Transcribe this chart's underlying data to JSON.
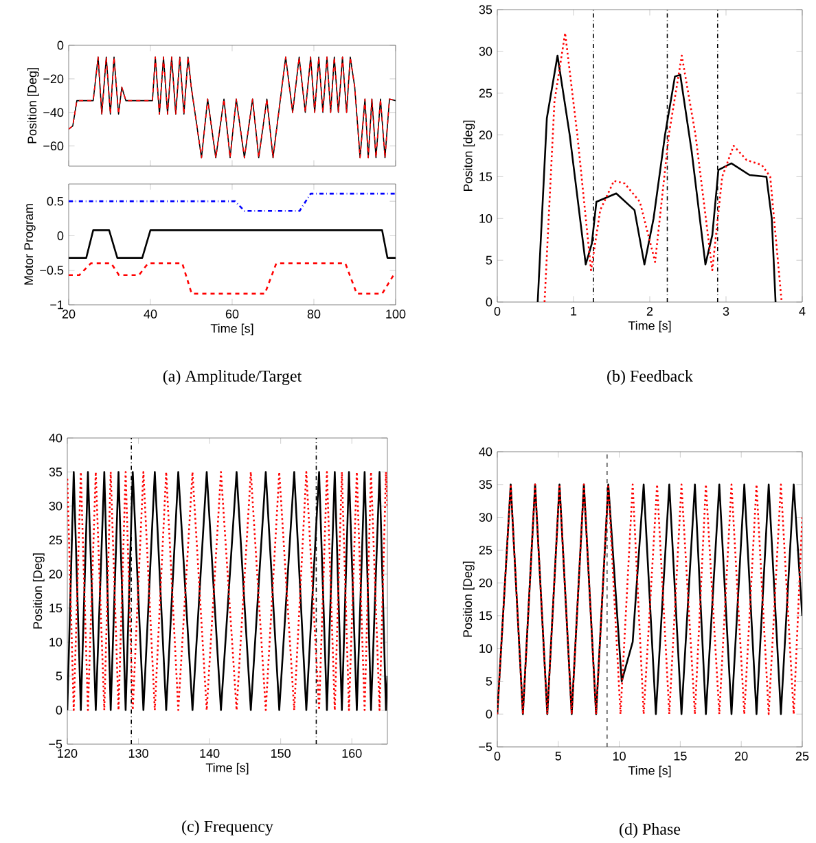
{
  "chart_data": [
    {
      "type": "line",
      "ylabel": "Position [Deg]",
      "xlim": [
        20,
        100
      ],
      "xticks": [
        20,
        40,
        60,
        80,
        100
      ],
      "ylim": [
        -72,
        0
      ],
      "yticks": [
        {
          "value": -60,
          "label": "−60"
        },
        {
          "value": -40,
          "label": "−40"
        },
        {
          "value": -20,
          "label": "−20"
        },
        0
      ],
      "tick_labels": "y",
      "x": [
        20,
        21,
        22,
        26,
        27.2,
        28.1,
        29.2,
        30.2,
        31.1,
        32.2,
        33,
        34,
        40.5,
        41.2,
        42.2,
        43.2,
        44.2,
        45.2,
        46.2,
        47.2,
        48.2,
        49.2,
        50,
        52.5,
        54,
        56,
        58,
        59.5,
        61,
        63,
        65,
        66.5,
        68.5,
        70,
        73.1,
        74.8,
        76.4,
        77.9,
        79.2,
        80.2,
        81.2,
        82.2,
        83.2,
        84.1,
        85,
        86,
        87,
        88,
        88.9,
        90,
        91.3,
        92.5,
        93.3,
        94.2,
        95.2,
        96.3,
        97.4,
        98.5,
        100
      ],
      "series": [
        {
          "color": "#000000",
          "line_style": "solid",
          "values": [
            -50,
            -48,
            -33,
            -33,
            -7,
            -41,
            -7,
            -41,
            -7,
            -41,
            -25,
            -33,
            -33,
            -7,
            -41,
            -7,
            -41,
            -7,
            -41,
            -7,
            -41,
            -7,
            -25,
            -67,
            -32,
            -67,
            -32,
            -67,
            -32,
            -67,
            -32,
            -67,
            -32,
            -67,
            -7,
            -40,
            -7,
            -40,
            -7,
            -40,
            -7,
            -40,
            -7,
            -40,
            -7,
            -40,
            -7,
            -40,
            -7,
            -25,
            -67,
            -32,
            -67,
            -32,
            -67,
            -32,
            -67,
            -32,
            -33
          ]
        },
        {
          "color": "#ff0000",
          "line_style": "dashed",
          "values": [
            -50,
            -48,
            -33,
            -33,
            -7,
            -41,
            -7,
            -41,
            -7,
            -41,
            -25,
            -33,
            -33,
            -7,
            -41,
            -7,
            -41,
            -7,
            -41,
            -7,
            -41,
            -7,
            -25,
            -67,
            -32,
            -67,
            -32,
            -67,
            -32,
            -67,
            -32,
            -67,
            -32,
            -67,
            -7,
            -40,
            -7,
            -40,
            -7,
            -40,
            -7,
            -40,
            -7,
            -40,
            -7,
            -40,
            -7,
            -40,
            -7,
            -25,
            -67,
            -32,
            -67,
            -32,
            -67,
            -32,
            -67,
            -32,
            -33
          ]
        }
      ]
    },
    {
      "type": "line",
      "xlabel": "Time [s]",
      "ylabel": "Motor Program",
      "xlim": [
        20,
        100
      ],
      "xticks": [
        20,
        40,
        60,
        80,
        100
      ],
      "ylim": [
        -1,
        0.75
      ],
      "yticks": [
        {
          "value": -1,
          "label": "−1"
        },
        {
          "value": -0.5,
          "label": "−0.5"
        },
        0,
        0.5
      ],
      "annotations": [
        "(a) Amplitude/Target"
      ],
      "series": [
        {
          "color": "#000000",
          "line_style": "solid",
          "x": [
            20,
            24.3,
            26,
            29.9,
            31.9,
            38,
            40,
            96.7,
            98,
            100
          ],
          "values": [
            -0.32,
            -0.32,
            0.08,
            0.08,
            -0.32,
            -0.32,
            0.08,
            0.08,
            -0.32,
            -0.32
          ]
        },
        {
          "color": "#ff0000",
          "line_style": "dashed",
          "x": [
            20,
            22.6,
            25.4,
            30.4,
            32.3,
            37.2,
            39.4,
            47.8,
            50.1,
            68,
            70.8,
            87.7,
            90.5,
            96.7,
            99.5,
            100
          ],
          "values": [
            -0.57,
            -0.57,
            -0.4,
            -0.4,
            -0.57,
            -0.57,
            -0.4,
            -0.4,
            -0.84,
            -0.84,
            -0.4,
            -0.4,
            -0.84,
            -0.84,
            -0.57,
            -0.55
          ]
        },
        {
          "color": "#0000ff",
          "line_style": "dashdot",
          "x": [
            20,
            60.7,
            63,
            76.5,
            79.2,
            100
          ],
          "values": [
            0.5,
            0.5,
            0.36,
            0.36,
            0.61,
            0.61
          ]
        }
      ]
    },
    {
      "type": "line",
      "xlabel": "Time [s]",
      "ylabel": "Positon [deg]",
      "xlim": [
        0,
        4
      ],
      "xticks": [
        0,
        1,
        2,
        3,
        4
      ],
      "ylim": [
        0,
        35
      ],
      "yticks": [
        0,
        5,
        10,
        15,
        20,
        25,
        30,
        35
      ],
      "annotations": [
        "(b) Feedback"
      ],
      "ref_lines": [
        {
          "axis": "x",
          "value": 1.26,
          "color": "#000000",
          "line_style": "dashdot"
        },
        {
          "axis": "x",
          "value": 2.23,
          "color": "#000000",
          "line_style": "dashdot"
        },
        {
          "axis": "x",
          "value": 2.89,
          "color": "#000000",
          "line_style": "dashdot"
        }
      ],
      "series": [
        {
          "color": "#000000",
          "line_style": "solid",
          "x": [
            0.53,
            0.65,
            0.79,
            0.95,
            1.16,
            1.24,
            1.3,
            1.56,
            1.8,
            1.93,
            2.05,
            2.2,
            2.33,
            2.4,
            2.55,
            2.73,
            2.82,
            2.9,
            3.07,
            3.31,
            3.53,
            3.6,
            3.65
          ],
          "values": [
            0,
            22,
            29.5,
            20,
            4.5,
            7,
            12,
            13,
            11,
            4.5,
            10,
            20,
            27,
            27.2,
            18,
            4.5,
            8,
            15.8,
            16.6,
            15.2,
            15,
            10,
            0
          ]
        },
        {
          "color": "#ff0000",
          "line_style": "dotted",
          "x": [
            0.62,
            0.75,
            0.89,
            1.05,
            1.23,
            1.35,
            1.53,
            1.67,
            1.87,
            2.07,
            2.25,
            2.42,
            2.6,
            2.82,
            2.95,
            3.1,
            3.27,
            3.47,
            3.58,
            3.73
          ],
          "values": [
            0,
            24,
            32.2,
            20,
            3.8,
            11,
            14.5,
            14.2,
            12,
            4.8,
            20,
            29.5,
            20,
            3.8,
            15,
            18.7,
            17,
            16.4,
            15,
            0
          ]
        }
      ]
    },
    {
      "type": "line",
      "xlabel": "Time [s]",
      "ylabel": "Position [Deg]",
      "xlim": [
        120,
        165
      ],
      "xticks": [
        120,
        130,
        140,
        150,
        160
      ],
      "ylim": [
        -5,
        40
      ],
      "yticks": [
        {
          "value": -5,
          "label": "−5"
        },
        0,
        5,
        10,
        15,
        20,
        25,
        30,
        35,
        40
      ],
      "annotations": [
        "(c) Frequency"
      ],
      "ref_lines": [
        {
          "axis": "x",
          "value": 129,
          "color": "#000000",
          "line_style": "dashdot"
        },
        {
          "axis": "x",
          "value": 155,
          "color": "#000000",
          "line_style": "dashdot"
        }
      ],
      "x": [
        120,
        120.9,
        121.9,
        122.9,
        124,
        125.2,
        126.1,
        127.2,
        128.2,
        129.2,
        130.7,
        132.3,
        133.9,
        135.6,
        137.6,
        139.6,
        141.6,
        143.8,
        145.8,
        147.9,
        149.8,
        151.9,
        153.6,
        155.4,
        156.5,
        157.6,
        158.6,
        159.6,
        160.7,
        161.8,
        162.7,
        163.9,
        164.8,
        165
      ],
      "series": [
        {
          "color": "#000000",
          "line_style": "solid",
          "values": [
            0,
            35,
            0,
            35,
            0,
            35,
            0,
            35,
            0,
            35,
            0,
            35,
            0,
            35,
            0,
            35,
            0,
            35,
            0,
            35,
            0,
            35,
            0,
            35,
            0,
            35,
            0,
            35,
            0,
            35,
            0,
            35,
            0,
            5
          ]
        },
        {
          "color": "#ff0000",
          "line_style": "dotted",
          "values": [
            34,
            0,
            35,
            0,
            35,
            0,
            35,
            0,
            35,
            0,
            35,
            0,
            35,
            0,
            35,
            0,
            35,
            0,
            35,
            0,
            35,
            0,
            35,
            0,
            35,
            0,
            35,
            0,
            35,
            0,
            35,
            0,
            35,
            30
          ]
        }
      ]
    },
    {
      "type": "line",
      "xlabel": "Time [s]",
      "ylabel": "Position [Deg]",
      "xlim": [
        0,
        25
      ],
      "xticks": [
        0,
        5,
        10,
        15,
        20,
        25
      ],
      "ylim": [
        -5,
        40
      ],
      "yticks": [
        {
          "value": -5,
          "label": "−5"
        },
        0,
        5,
        10,
        15,
        20,
        25,
        30,
        35,
        40
      ],
      "annotations": [
        "(d) Phase"
      ],
      "ref_lines": [
        {
          "axis": "x",
          "value": 9,
          "color": "#555555",
          "line_style": "dashed"
        }
      ],
      "series": [
        {
          "color": "#000000",
          "line_style": "solid",
          "x": [
            0,
            1.1,
            2.1,
            3.1,
            4.1,
            5.1,
            6.1,
            7.1,
            8.1,
            9.1,
            10.2,
            11.1,
            12,
            13,
            14.1,
            15.1,
            16.2,
            17.1,
            18.2,
            19.2,
            20.25,
            21.25,
            22.25,
            23.25,
            24.3,
            25
          ],
          "values": [
            0,
            35,
            0,
            35,
            0,
            35,
            0,
            35,
            0,
            35,
            5,
            11,
            35,
            0,
            35,
            0,
            35,
            0,
            35,
            0,
            35,
            0,
            35,
            0,
            35,
            15
          ]
        },
        {
          "color": "#ff0000",
          "line_style": "dotted",
          "x": [
            0,
            1.1,
            2.1,
            3.1,
            4.1,
            5.1,
            6.1,
            7.1,
            8.1,
            9.1,
            10.1,
            11.1,
            12,
            13.1,
            14.1,
            15.1,
            16.2,
            17.1,
            18.2,
            19.2,
            20.25,
            21.25,
            22.25,
            23.25,
            24.3,
            25
          ],
          "values": [
            0,
            35,
            0,
            35,
            0,
            35,
            0,
            35,
            0,
            35,
            0,
            35,
            0,
            35,
            0,
            35,
            0,
            35,
            0,
            35,
            0,
            35,
            0,
            35,
            0,
            30
          ]
        }
      ]
    }
  ]
}
